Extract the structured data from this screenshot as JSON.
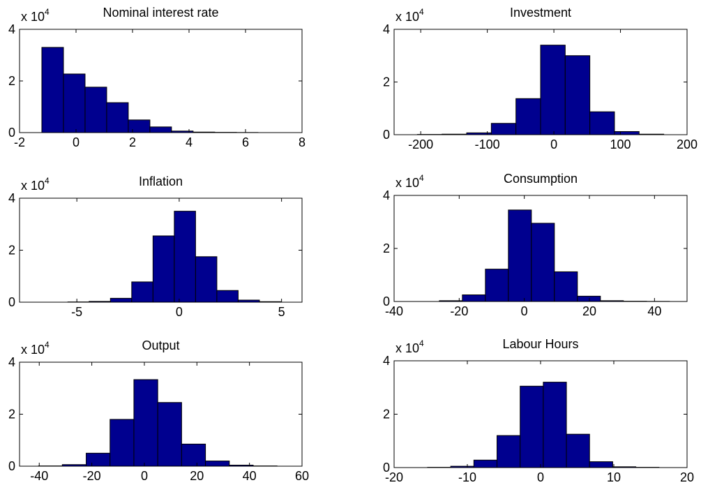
{
  "chart_data": [
    {
      "type": "histogram",
      "title": "Nominal interest rate",
      "y_multiplier": "x 10",
      "y_exponent": "4",
      "bins": [
        -1.21,
        -0.445,
        0.32,
        1.085,
        1.85,
        2.615,
        3.38,
        4.145,
        4.91,
        5.675,
        6.44
      ],
      "values": [
        3.3,
        2.27,
        1.76,
        1.16,
        0.49,
        0.22,
        0.06,
        0.02,
        0.01,
        0.005
      ],
      "color": "#00008f",
      "edge_color": "#000000",
      "xlim": [
        -2,
        8
      ],
      "xticks": [
        -2,
        0,
        2,
        4,
        6,
        8
      ],
      "ylim": [
        0,
        4
      ],
      "yticks": [
        0,
        2,
        4
      ]
    },
    {
      "type": "histogram",
      "title": "Investment",
      "y_multiplier": "x 10",
      "y_exponent": "4",
      "bins": [
        -205,
        -168,
        -131,
        -94,
        -57,
        -20,
        17,
        54,
        91,
        128,
        165
      ],
      "values": [
        0.01,
        0.02,
        0.07,
        0.43,
        1.37,
        3.4,
        3.0,
        0.87,
        0.12,
        0.02
      ],
      "color": "#00008f",
      "edge_color": "#000000",
      "xlim": [
        -240,
        200
      ],
      "xticks": [
        -200,
        -100,
        0,
        100,
        200
      ],
      "ylim": [
        0,
        4
      ],
      "yticks": [
        0,
        2,
        4
      ]
    },
    {
      "type": "histogram",
      "title": "Inflation",
      "y_multiplier": "x 10",
      "y_exponent": "4",
      "bins": [
        -5.44,
        -4.4,
        -3.36,
        -2.32,
        -1.28,
        -0.24,
        0.8,
        1.84,
        2.88,
        3.92,
        4.96
      ],
      "values": [
        0.01,
        0.03,
        0.15,
        0.78,
        2.55,
        3.5,
        1.75,
        0.45,
        0.08,
        0.02
      ],
      "color": "#00008f",
      "edge_color": "#000000",
      "xlim": [
        -7.8,
        6
      ],
      "xticks": [
        -5,
        0,
        5
      ],
      "ylim": [
        0,
        4
      ],
      "yticks": [
        0,
        2,
        4
      ]
    },
    {
      "type": "histogram",
      "title": "Consumption",
      "y_multiplier": "x 10",
      "y_exponent": "4",
      "bins": [
        -26.1,
        -19.03,
        -11.96,
        -4.89,
        2.18,
        9.25,
        16.32,
        23.39,
        30.46,
        37.53,
        44.6
      ],
      "values": [
        0.03,
        0.25,
        1.22,
        3.45,
        2.95,
        1.12,
        0.2,
        0.03,
        0.01,
        0.005
      ],
      "color": "#00008f",
      "edge_color": "#000000",
      "xlim": [
        -40,
        50
      ],
      "xticks": [
        -40,
        -20,
        0,
        20,
        40
      ],
      "ylim": [
        0,
        4
      ],
      "yticks": [
        0,
        2,
        4
      ]
    },
    {
      "type": "histogram",
      "title": "Output",
      "y_multiplier": "x 10",
      "y_exponent": "4",
      "bins": [
        -40.3,
        -31.22,
        -22.14,
        -13.06,
        -3.98,
        5.1,
        14.18,
        23.26,
        32.34,
        41.42,
        50.5
      ],
      "values": [
        0.01,
        0.06,
        0.5,
        1.8,
        3.33,
        2.45,
        0.85,
        0.2,
        0.04,
        0.01
      ],
      "color": "#00008f",
      "edge_color": "#000000",
      "xlim": [
        -47.5,
        60
      ],
      "xticks": [
        -40,
        -20,
        0,
        20,
        40,
        60
      ],
      "ylim": [
        0,
        4
      ],
      "yticks": [
        0,
        2,
        4
      ]
    },
    {
      "type": "histogram",
      "title": "Labour Hours",
      "y_multiplier": "x 10",
      "y_exponent": "4",
      "bins": [
        -15.43,
        -12.27,
        -9.11,
        -5.95,
        -2.79,
        0.37,
        3.53,
        6.69,
        9.85,
        13.01,
        16.17
      ],
      "values": [
        0.01,
        0.05,
        0.28,
        1.2,
        3.05,
        3.2,
        1.25,
        0.22,
        0.03,
        0.01
      ],
      "color": "#00008f",
      "edge_color": "#000000",
      "xlim": [
        -20,
        20
      ],
      "xticks": [
        -20,
        -10,
        0,
        10,
        20
      ],
      "ylim": [
        0,
        4
      ],
      "yticks": [
        0,
        2,
        4
      ]
    }
  ]
}
